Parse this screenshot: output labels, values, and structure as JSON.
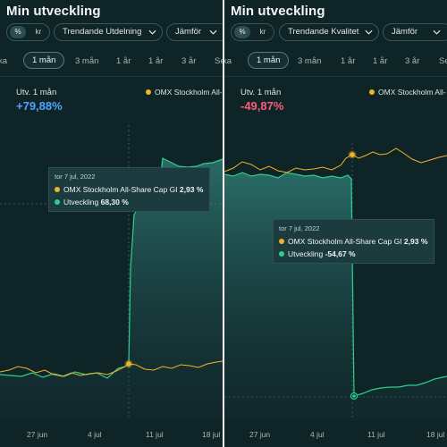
{
  "left": {
    "title": "Min utveckling",
    "toggle": {
      "pct": "%",
      "kr": "kr"
    },
    "dropdown1": "Trendande Utdelning",
    "dropdown2": "Jämför",
    "tabs": [
      "ka",
      "1 mån",
      "3 mån",
      "1 år",
      "1 år",
      "3 år",
      "Se"
    ],
    "active_tab": "1 mån",
    "utv_label": "Utv.  1 mån",
    "utv_value": "+79,88%",
    "utv_color": "#4ea3ff",
    "legend": "OMX Stockholm All-",
    "tooltip": {
      "date": "tor 7 jul, 2022",
      "row1_label": "OMX Stockholm All-Share Cap GI",
      "row1_value": "2,93 %",
      "row2_label": "Utveckling",
      "row2_value": "68,30 %"
    },
    "x_ticks": [
      "27 jun",
      "4 jul",
      "11 jul",
      "18 jul"
    ]
  },
  "right": {
    "title": "Min utveckling",
    "toggle": {
      "pct": "%",
      "kr": "kr"
    },
    "dropdown1": "Trendande Kvalitet",
    "dropdown2": "Jämför",
    "tabs": [
      "ka",
      "1 mån",
      "3 mån",
      "1 år",
      "1 år",
      "3 år",
      "Se"
    ],
    "active_tab": "1 mån",
    "utv_label": "Utv.  1 mån",
    "utv_value": "-49,87%",
    "utv_color": "#ff5a7a",
    "legend": "OMX Stockholm All-",
    "tooltip": {
      "date": "tor 7 jul, 2022",
      "row1_label": "OMX Stockholm All-Share Cap GI",
      "row1_value": "2,93 %",
      "row2_label": "Utveckling",
      "row2_value": "-54,67 %"
    },
    "x_ticks": [
      "27 jun",
      "4 jul",
      "11 jul",
      "18 jul"
    ]
  },
  "colors": {
    "omx": "#f0b429",
    "utveckling": "#2ecf8d",
    "area": "#2a8a82",
    "panel_bg": "#0f2427"
  }
}
